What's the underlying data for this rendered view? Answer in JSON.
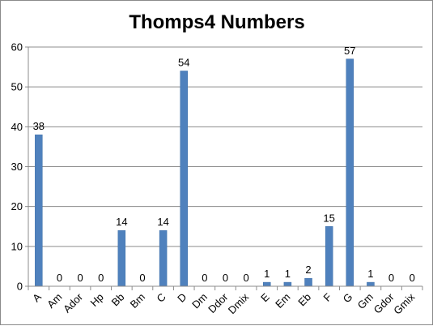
{
  "chart_data": {
    "type": "bar",
    "title": "Thomps4 Numbers",
    "xlabel": "",
    "ylabel": "",
    "categories": [
      "A",
      "Am",
      "Ador",
      "Hp",
      "Bb",
      "Bm",
      "C",
      "D",
      "Dm",
      "Ddor",
      "Dmix",
      "E",
      "Em",
      "Eb",
      "F",
      "G",
      "Gm",
      "Gdor",
      "Gmix"
    ],
    "values": [
      38,
      0,
      0,
      0,
      14,
      0,
      14,
      54,
      0,
      0,
      0,
      1,
      1,
      2,
      15,
      57,
      1,
      0,
      0
    ],
    "data_labels": [
      "38",
      "0",
      "0",
      "0",
      "14",
      "0",
      "14",
      "54",
      "0",
      "0",
      "0",
      "1",
      "1",
      "2",
      "15",
      "57",
      "1",
      "0",
      "0"
    ],
    "ylim": [
      0,
      60
    ],
    "yticks": [
      "0",
      "10",
      "20",
      "30",
      "40",
      "50",
      "60"
    ],
    "grid": true,
    "legend": "none",
    "bar_color": "#4f81bd"
  }
}
